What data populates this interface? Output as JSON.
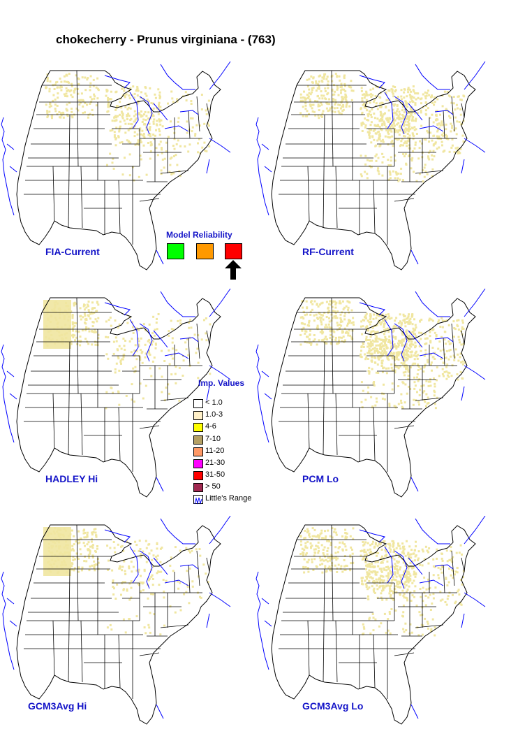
{
  "title": "chokecherry - Prunus virginiana - (763)",
  "maps": [
    {
      "label": "FIA-Current",
      "name": "map-fia-current",
      "density": 0.55,
      "nw": 1.0,
      "mi": 0.9,
      "ne": 0.6
    },
    {
      "label": "RF-Current",
      "name": "map-rf-current",
      "density": 0.8,
      "nw": 0.9,
      "mi": 1.0,
      "ne": 1.0
    },
    {
      "label": "HADLEY Hi",
      "name": "map-hadley-hi",
      "density": 0.45,
      "nw": 1.6,
      "mi": 0.5,
      "ne": 0.5
    },
    {
      "label": "PCM Lo",
      "name": "map-pcm-lo",
      "density": 0.85,
      "nw": 1.0,
      "mi": 1.2,
      "ne": 0.9
    },
    {
      "label": "GCM3Avg Hi",
      "name": "map-gcm3avg-hi",
      "density": 0.45,
      "nw": 1.6,
      "mi": 0.5,
      "ne": 0.4
    },
    {
      "label": "GCM3Avg Lo",
      "name": "map-gcm3avg-lo",
      "density": 0.7,
      "nw": 1.0,
      "mi": 1.3,
      "ne": 0.7
    }
  ],
  "model_reliability": {
    "title": "Model Reliability",
    "colors": [
      "#00ff00",
      "#ff9900",
      "#ff0000"
    ],
    "selected_index": 2
  },
  "legend": {
    "title": "Imp. Values",
    "items": [
      {
        "label": "< 1.0",
        "color": "#ffffff"
      },
      {
        "label": "1.0-3",
        "color": "#fff0c8"
      },
      {
        "label": "4-6",
        "color": "#ffff00"
      },
      {
        "label": "7-10",
        "color": "#b4a064"
      },
      {
        "label": "11-20",
        "color": "#ff9966"
      },
      {
        "label": "21-30",
        "color": "#ff00ff"
      },
      {
        "label": "31-50",
        "color": "#ff0000"
      },
      {
        "label": "> 50",
        "color": "#a02850"
      }
    ],
    "range_label": "Little's Range"
  },
  "colors": {
    "label_blue": "#1414c8",
    "range_line": "#0000ff",
    "presence_fill": "#f0e6a0",
    "state_lines": "#000000"
  }
}
